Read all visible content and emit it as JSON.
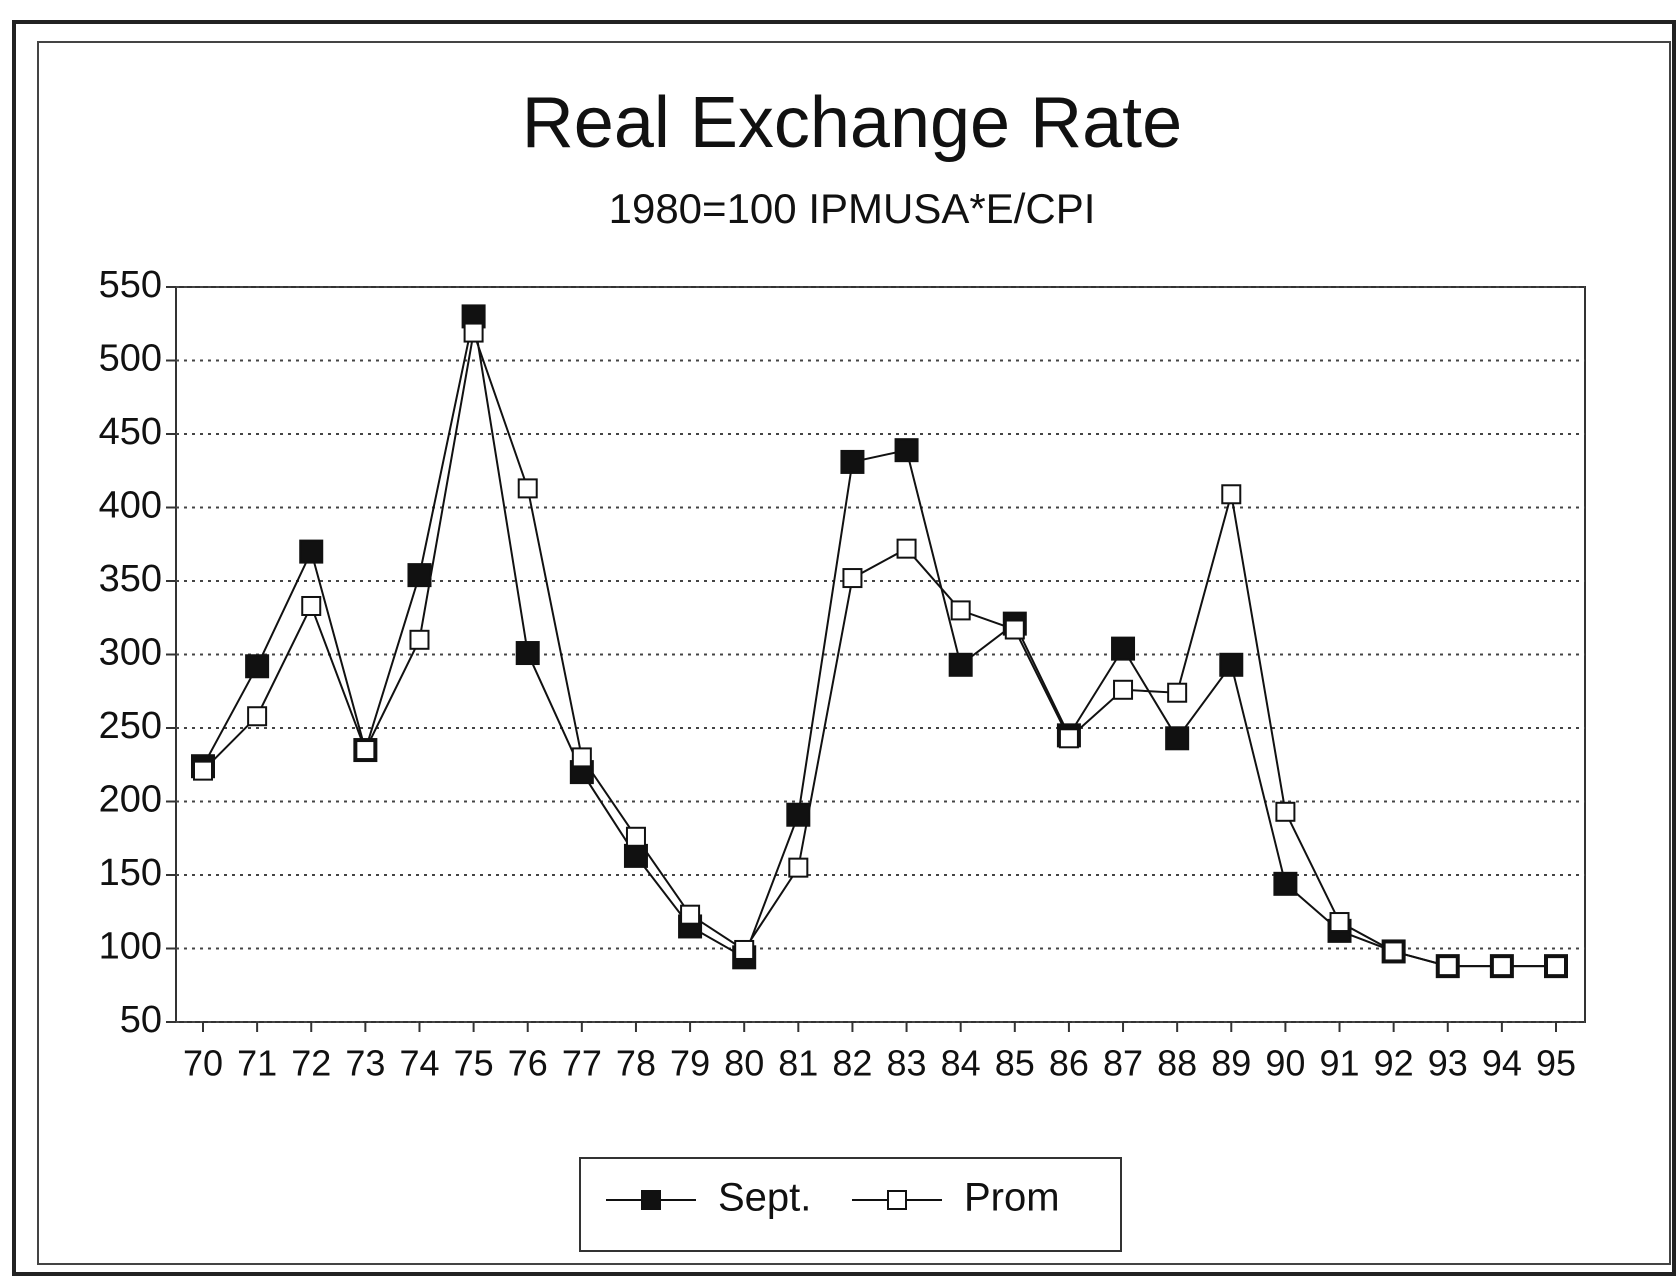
{
  "chart_data": {
    "type": "line",
    "title": "Real Exchange Rate",
    "subtitle": "1980=100 IPMUSA*E/CPI",
    "categories": [
      "70",
      "71",
      "72",
      "73",
      "74",
      "75",
      "76",
      "77",
      "78",
      "79",
      "80",
      "81",
      "82",
      "83",
      "84",
      "85",
      "86",
      "87",
      "88",
      "89",
      "90",
      "91",
      "92",
      "93",
      "94",
      "95"
    ],
    "series": [
      {
        "name": "Sept.",
        "color": "#111111",
        "marker": "filled",
        "values": [
          224,
          292,
          370,
          235,
          354,
          530,
          301,
          220,
          163,
          115,
          94,
          191,
          431,
          439,
          293,
          321,
          245,
          304,
          243,
          293,
          144,
          112,
          98,
          88,
          88,
          88
        ]
      },
      {
        "name": "Prom",
        "color": "#111111",
        "marker": "open",
        "values": [
          221,
          258,
          333,
          235,
          310,
          519,
          413,
          230,
          176,
          123,
          99,
          155,
          352,
          372,
          330,
          317,
          243,
          276,
          274,
          409,
          193,
          118,
          98,
          88,
          88,
          88
        ]
      }
    ],
    "ylim": [
      50,
      550
    ],
    "yticks": [
      50,
      100,
      150,
      200,
      250,
      300,
      350,
      400,
      450,
      500,
      550
    ],
    "grid": true,
    "legend": "bottom"
  }
}
